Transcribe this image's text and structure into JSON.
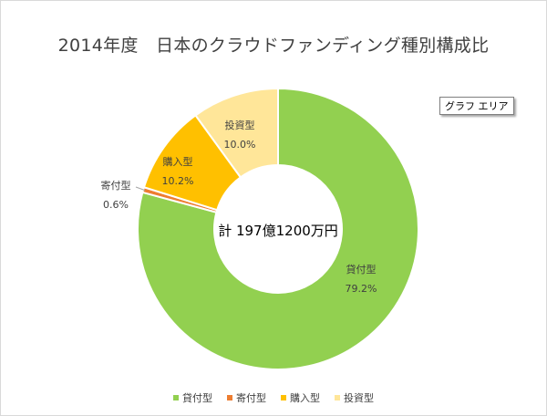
{
  "chart_data": {
    "type": "pie",
    "subtype": "doughnut",
    "title": "2014年度　日本のクラウドファンディング種別構成比",
    "center_label": "計 197億1200万円",
    "unit": "%",
    "categories": [
      "貸付型",
      "寄付型",
      "購入型",
      "投資型"
    ],
    "values": [
      79.2,
      0.6,
      10.2,
      10.0
    ],
    "value_labels": [
      "79.2%",
      "0.6%",
      "10.2%",
      "10.0%"
    ],
    "colors": [
      "#92d050",
      "#ed7d31",
      "#ffc000",
      "#ffe699"
    ],
    "start_angle_deg": 0,
    "direction": "clockwise",
    "legend_position": "bottom"
  },
  "tooltip": {
    "text": "グラフ エリア"
  }
}
